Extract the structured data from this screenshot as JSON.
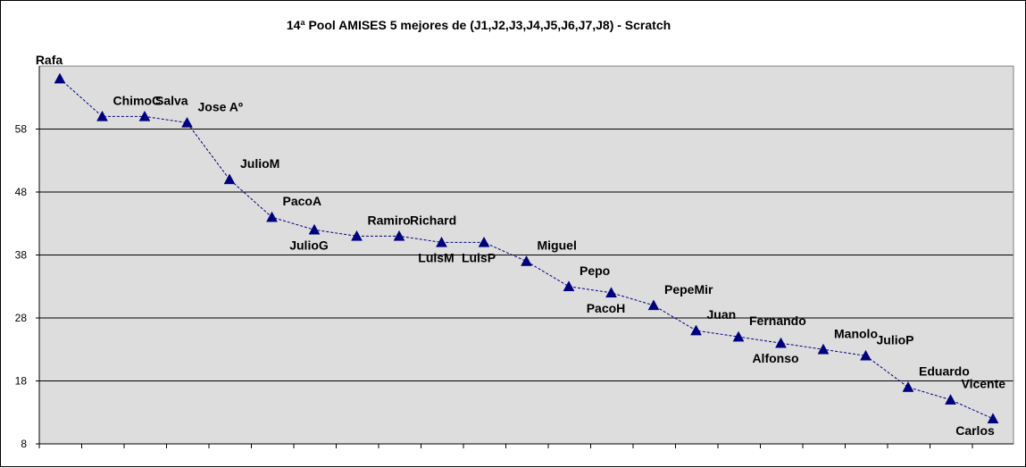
{
  "chart_data": {
    "type": "line",
    "title": "14ª Pool AMISES 5 mejores de (J1,J2,J3,J4,J5,J6,J7,J8) - Scratch",
    "xlabel": "",
    "ylabel": "",
    "ylim": [
      8,
      68
    ],
    "yticks": [
      8,
      18,
      28,
      38,
      48,
      58
    ],
    "grid": true,
    "legend": "none",
    "colors": {
      "plot_background": "#dddddd",
      "series": "#00007f",
      "gridline": "#000000"
    },
    "categories": [
      "Rafa",
      "ChimoC",
      "Salva",
      "Jose Aº",
      "JulioM",
      "PacoA",
      "JulioG",
      "Ramiro",
      "Richard",
      "LuisM",
      "LuisP",
      "Miguel",
      "Pepo",
      "PacoH",
      "PepeMir",
      "Juan",
      "Fernando",
      "Alfonso",
      "Manolo",
      "JulioP",
      "Eduardo",
      "Vicente",
      "Carlos"
    ],
    "label_side": [
      "above",
      "above",
      "above",
      "above",
      "above",
      "above",
      "below",
      "above",
      "above",
      "below",
      "below",
      "above",
      "above",
      "below",
      "above",
      "above",
      "above",
      "below",
      "above",
      "above",
      "above",
      "above",
      "below"
    ],
    "series": [
      {
        "values": [
          66,
          60,
          60,
          59,
          50,
          44,
          42,
          41,
          41,
          40,
          40,
          37,
          33,
          32,
          30,
          26,
          25,
          24,
          23,
          22,
          17,
          15,
          12
        ]
      }
    ]
  }
}
